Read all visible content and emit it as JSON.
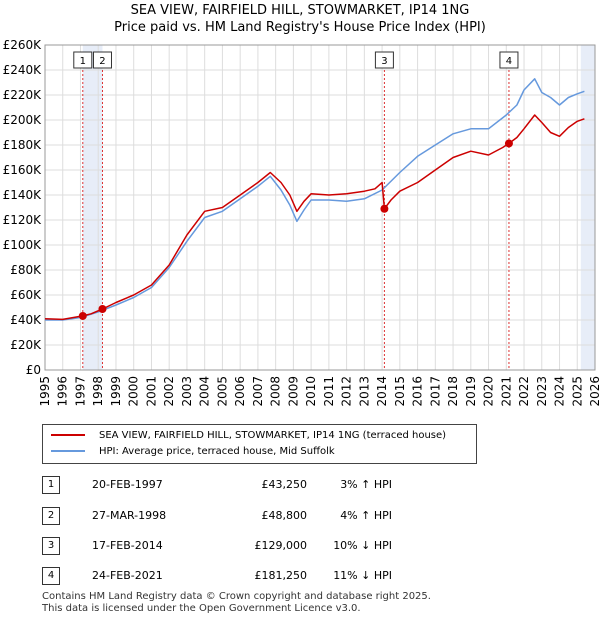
{
  "chart_data": {
    "type": "line",
    "title": "SEA VIEW, FAIRFIELD HILL, STOWMARKET, IP14 1NG",
    "subtitle": "Price paid vs. HM Land Registry's House Price Index (HPI)",
    "xlim": [
      1995,
      2026
    ],
    "ylim": [
      0,
      260000
    ],
    "y_ticks": [
      0,
      20000,
      40000,
      60000,
      80000,
      100000,
      120000,
      140000,
      160000,
      180000,
      200000,
      220000,
      240000,
      260000
    ],
    "y_tick_labels": [
      "£0",
      "£20K",
      "£40K",
      "£60K",
      "£80K",
      "£100K",
      "£120K",
      "£140K",
      "£160K",
      "£180K",
      "£200K",
      "£220K",
      "£240K",
      "£260K"
    ],
    "x_ticks": [
      1995,
      1996,
      1997,
      1998,
      1999,
      2000,
      2001,
      2002,
      2003,
      2004,
      2005,
      2006,
      2007,
      2008,
      2009,
      2010,
      2011,
      2012,
      2013,
      2014,
      2015,
      2016,
      2017,
      2018,
      2019,
      2020,
      2021,
      2022,
      2023,
      2024,
      2025,
      2026
    ],
    "series": [
      {
        "name": "SEA VIEW, FAIRFIELD HILL, STOWMARKET, IP14 1NG (terraced house)",
        "color": "#cc0000",
        "x": [
          1995.0,
          1996.0,
          1997.13,
          1997.6,
          1998.24,
          1999.0,
          2000.0,
          2001.0,
          2002.0,
          2003.0,
          2004.0,
          2005.0,
          2006.0,
          2007.0,
          2007.7,
          2008.3,
          2008.8,
          2009.2,
          2009.6,
          2010.0,
          2011.0,
          2012.0,
          2013.0,
          2013.6,
          2014.0,
          2014.13,
          2014.5,
          2015.0,
          2016.0,
          2017.0,
          2018.0,
          2019.0,
          2020.0,
          2020.8,
          2021.15,
          2021.6,
          2022.0,
          2022.6,
          2023.0,
          2023.5,
          2024.0,
          2024.5,
          2025.0,
          2025.4
        ],
        "values": [
          41000,
          40500,
          43250,
          45000,
          48800,
          54000,
          60000,
          68000,
          84000,
          108000,
          127000,
          130000,
          140000,
          150000,
          158000,
          150000,
          140000,
          127000,
          135000,
          141000,
          140000,
          141000,
          143000,
          145000,
          150000,
          129000,
          136000,
          143000,
          150000,
          160000,
          170000,
          175000,
          172000,
          178000,
          181250,
          186000,
          193000,
          204000,
          198000,
          190000,
          187000,
          194000,
          199000,
          201000
        ]
      },
      {
        "name": "HPI: Average price, terraced house, Mid Suffolk",
        "color": "#6699dd",
        "x": [
          1995.0,
          1996.0,
          1997.0,
          1998.0,
          1999.0,
          2000.0,
          2001.0,
          2002.0,
          2003.0,
          2004.0,
          2005.0,
          2006.0,
          2007.0,
          2007.7,
          2008.3,
          2008.8,
          2009.2,
          2009.6,
          2010.0,
          2011.0,
          2012.0,
          2013.0,
          2014.0,
          2015.0,
          2016.0,
          2017.0,
          2018.0,
          2019.0,
          2020.0,
          2021.0,
          2021.6,
          2022.0,
          2022.6,
          2023.0,
          2023.5,
          2024.0,
          2024.5,
          2025.0,
          2025.4
        ],
        "values": [
          40000,
          40000,
          42000,
          46500,
          52000,
          58000,
          66000,
          82000,
          103000,
          122000,
          127000,
          137000,
          147000,
          155000,
          144000,
          132000,
          119000,
          128000,
          136000,
          136000,
          135000,
          137000,
          144000,
          158000,
          171000,
          180000,
          189000,
          193000,
          193000,
          204000,
          212000,
          224000,
          233000,
          222000,
          218000,
          212000,
          218000,
          221000,
          223000
        ]
      }
    ],
    "sales": [
      {
        "num": "1",
        "x": 1997.13,
        "value": 43250
      },
      {
        "num": "2",
        "x": 1998.24,
        "value": 48800
      },
      {
        "num": "3",
        "x": 2014.13,
        "value": 129000
      },
      {
        "num": "4",
        "x": 2021.15,
        "value": 181250
      }
    ],
    "shaded_ranges": [
      [
        1997.13,
        1998.24
      ],
      [
        2025.2,
        2026.0
      ]
    ]
  },
  "legend": {
    "red": "SEA VIEW, FAIRFIELD HILL, STOWMARKET, IP14 1NG (terraced house)",
    "blue": "HPI: Average price, terraced house, Mid Suffolk"
  },
  "table": [
    {
      "num": "1",
      "date": "20-FEB-1997",
      "price": "£43,250",
      "hpi": "3% ↑ HPI"
    },
    {
      "num": "2",
      "date": "27-MAR-1998",
      "price": "£48,800",
      "hpi": "4% ↑ HPI"
    },
    {
      "num": "3",
      "date": "17-FEB-2014",
      "price": "£129,000",
      "hpi": "10% ↓ HPI"
    },
    {
      "num": "4",
      "date": "24-FEB-2021",
      "price": "£181,250",
      "hpi": "11% ↓ HPI"
    }
  ],
  "footer": {
    "line1": "Contains HM Land Registry data © Crown copyright and database right 2025.",
    "line2": "This data is licensed under the Open Government Licence v3.0."
  }
}
